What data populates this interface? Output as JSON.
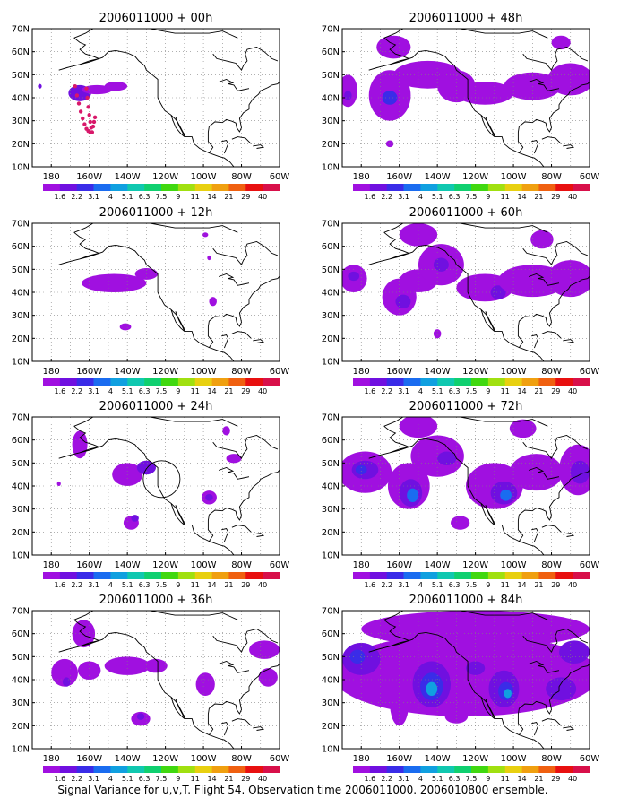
{
  "caption": "Signal Variance for u,v,T. Flight 54. Observation time 2006011000. 2006010800 ensemble.",
  "colors": {
    "coast": "#000000",
    "grid": "#808080",
    "frame": "#000000",
    "flight_track": "#d8186a",
    "circle": "#000000"
  },
  "colorbar": {
    "labels": [
      "1.6",
      "2.2",
      "3.1",
      "4",
      "5.1",
      "6.3",
      "7.5",
      "9",
      "11",
      "14",
      "21",
      "29",
      "40"
    ],
    "colors": [
      "#a010e0",
      "#7010e0",
      "#3a2ce8",
      "#1a6cf0",
      "#10a0e0",
      "#10c8b0",
      "#10d070",
      "#40d810",
      "#a0e010",
      "#e8d010",
      "#f0a010",
      "#f06010",
      "#e81010",
      "#d8104a"
    ]
  },
  "chart_data": [
    {
      "type": "heatmap",
      "title": "2006011000 + 00h",
      "lead_hours": 0,
      "x_ticks": [
        "180",
        "160W",
        "140W",
        "120W",
        "100W",
        "80W",
        "60W"
      ],
      "y_ticks": [
        "10N",
        "20N",
        "30N",
        "40N",
        "50N",
        "60N",
        "70N"
      ],
      "xlim": [
        -190,
        -60
      ],
      "ylim": [
        10,
        70
      ],
      "grid": "dotted",
      "colorbar": "bottom",
      "signal_regions": [
        {
          "lon": -165,
          "lat": 42,
          "rx": 6,
          "ry": 3.5,
          "level": 1
        },
        {
          "lon": -156,
          "lat": 43.5,
          "rx": 8,
          "ry": 2,
          "level": 0
        },
        {
          "lon": -146,
          "lat": 45,
          "rx": 6,
          "ry": 2,
          "level": 0
        },
        {
          "lon": -186,
          "lat": 45,
          "rx": 1,
          "ry": 1,
          "level": 1
        }
      ],
      "flight_track": {
        "lon": [
          -167.5,
          -166.5,
          -165.5,
          -164.5,
          -163.5,
          -162.5,
          -161.5,
          -160.5,
          -159.5,
          -161.5,
          -161,
          -160.5,
          -160,
          -159.5,
          -159,
          -158.5,
          -158,
          -157.5,
          -157
        ],
        "lat": [
          45,
          41,
          37.5,
          34,
          31,
          28.5,
          26.5,
          25.5,
          25,
          44,
          40,
          36,
          32.5,
          29.5,
          27,
          25,
          27.5,
          29.5,
          31.5
        ]
      }
    },
    {
      "type": "heatmap",
      "title": "2006011000 + 48h",
      "lead_hours": 48,
      "x_ticks": [
        "180",
        "160W",
        "140W",
        "120W",
        "100W",
        "80W",
        "60W"
      ],
      "y_ticks": [
        "10N",
        "20N",
        "30N",
        "40N",
        "50N",
        "60N",
        "70N"
      ],
      "xlim": [
        -190,
        -60
      ],
      "ylim": [
        10,
        70
      ],
      "grid": "dotted",
      "colorbar": "bottom",
      "signal_regions": [
        {
          "lon": -165,
          "lat": 41,
          "rx": 11,
          "ry": 11,
          "level": 0
        },
        {
          "lon": -165,
          "lat": 40,
          "rx": 4,
          "ry": 3,
          "level": 2
        },
        {
          "lon": -163,
          "lat": 62,
          "rx": 9,
          "ry": 5,
          "level": 0
        },
        {
          "lon": -187,
          "lat": 43,
          "rx": 5,
          "ry": 7,
          "level": 0
        },
        {
          "lon": -187,
          "lat": 41,
          "rx": 2,
          "ry": 2,
          "level": 1
        },
        {
          "lon": -145,
          "lat": 50,
          "rx": 18,
          "ry": 6,
          "level": 0
        },
        {
          "lon": -130,
          "lat": 45,
          "rx": 10,
          "ry": 7,
          "level": 0
        },
        {
          "lon": -115,
          "lat": 42,
          "rx": 15,
          "ry": 5,
          "level": 0
        },
        {
          "lon": -90,
          "lat": 45,
          "rx": 15,
          "ry": 6,
          "level": 0
        },
        {
          "lon": -70,
          "lat": 48,
          "rx": 12,
          "ry": 7,
          "level": 0
        },
        {
          "lon": -75,
          "lat": 64,
          "rx": 5,
          "ry": 3,
          "level": 0
        },
        {
          "lon": -165,
          "lat": 20,
          "rx": 2,
          "ry": 1.5,
          "level": 0
        }
      ]
    },
    {
      "type": "heatmap",
      "title": "2006011000 + 12h",
      "lead_hours": 12,
      "x_ticks": [
        "180",
        "160W",
        "140W",
        "120W",
        "100W",
        "80W",
        "60W"
      ],
      "y_ticks": [
        "10N",
        "20N",
        "30N",
        "40N",
        "50N",
        "60N",
        "70N"
      ],
      "xlim": [
        -190,
        -60
      ],
      "ylim": [
        10,
        70
      ],
      "grid": "dotted",
      "colorbar": "bottom",
      "signal_regions": [
        {
          "lon": -147,
          "lat": 44,
          "rx": 17,
          "ry": 4,
          "level": 0
        },
        {
          "lon": -130,
          "lat": 48,
          "rx": 6,
          "ry": 2.5,
          "level": 0
        },
        {
          "lon": -99,
          "lat": 65,
          "rx": 1.5,
          "ry": 1,
          "level": 0
        },
        {
          "lon": -97,
          "lat": 55,
          "rx": 1,
          "ry": 1,
          "level": 0
        },
        {
          "lon": -95,
          "lat": 36,
          "rx": 2,
          "ry": 2,
          "level": 0
        },
        {
          "lon": -141,
          "lat": 25,
          "rx": 3,
          "ry": 1.5,
          "level": 0
        }
      ]
    },
    {
      "type": "heatmap",
      "title": "2006011000 + 60h",
      "lead_hours": 60,
      "x_ticks": [
        "180",
        "160W",
        "140W",
        "120W",
        "100W",
        "80W",
        "60W"
      ],
      "y_ticks": [
        "10N",
        "20N",
        "30N",
        "40N",
        "50N",
        "60N",
        "70N"
      ],
      "xlim": [
        -190,
        -60
      ],
      "ylim": [
        10,
        70
      ],
      "grid": "dotted",
      "colorbar": "bottom",
      "signal_regions": [
        {
          "lon": -184,
          "lat": 46,
          "rx": 7,
          "ry": 6,
          "level": 0
        },
        {
          "lon": -184,
          "lat": 47,
          "rx": 3,
          "ry": 2,
          "level": 1
        },
        {
          "lon": -160,
          "lat": 38,
          "rx": 9,
          "ry": 8,
          "level": 0
        },
        {
          "lon": -158,
          "lat": 36,
          "rx": 4,
          "ry": 3,
          "level": 1
        },
        {
          "lon": -150,
          "lat": 45,
          "rx": 10,
          "ry": 5,
          "level": 0
        },
        {
          "lon": -138,
          "lat": 52,
          "rx": 12,
          "ry": 9,
          "level": 0
        },
        {
          "lon": -138,
          "lat": 52,
          "rx": 4,
          "ry": 3,
          "level": 1
        },
        {
          "lon": -150,
          "lat": 65,
          "rx": 10,
          "ry": 5,
          "level": 0
        },
        {
          "lon": -115,
          "lat": 42,
          "rx": 15,
          "ry": 6,
          "level": 0
        },
        {
          "lon": -108,
          "lat": 40,
          "rx": 4,
          "ry": 3,
          "level": 1
        },
        {
          "lon": -90,
          "lat": 45,
          "rx": 18,
          "ry": 7,
          "level": 0
        },
        {
          "lon": -70,
          "lat": 46,
          "rx": 12,
          "ry": 8,
          "level": 0
        },
        {
          "lon": -85,
          "lat": 63,
          "rx": 6,
          "ry": 4,
          "level": 0
        },
        {
          "lon": -140,
          "lat": 22,
          "rx": 2,
          "ry": 2,
          "level": 0
        }
      ]
    },
    {
      "type": "heatmap",
      "title": "2006011000 + 24h",
      "lead_hours": 24,
      "x_ticks": [
        "180",
        "160W",
        "140W",
        "120W",
        "100W",
        "80W",
        "60W"
      ],
      "y_ticks": [
        "10N",
        "20N",
        "30N",
        "40N",
        "50N",
        "60N",
        "70N"
      ],
      "xlim": [
        -190,
        -60
      ],
      "ylim": [
        10,
        70
      ],
      "grid": "dotted",
      "colorbar": "bottom",
      "signal_regions": [
        {
          "lon": -165,
          "lat": 58,
          "rx": 4,
          "ry": 6,
          "level": 0
        },
        {
          "lon": -140,
          "lat": 45,
          "rx": 8,
          "ry": 5,
          "level": 0
        },
        {
          "lon": -130,
          "lat": 48,
          "rx": 5,
          "ry": 3,
          "level": 1
        },
        {
          "lon": -138,
          "lat": 24,
          "rx": 4,
          "ry": 3,
          "level": 0
        },
        {
          "lon": -136,
          "lat": 26,
          "rx": 2,
          "ry": 1.5,
          "level": 1
        },
        {
          "lon": -97,
          "lat": 35,
          "rx": 4,
          "ry": 3,
          "level": 0
        },
        {
          "lon": -97,
          "lat": 35,
          "rx": 2,
          "ry": 1.5,
          "level": 1
        },
        {
          "lon": -84,
          "lat": 52,
          "rx": 4,
          "ry": 2,
          "level": 0
        },
        {
          "lon": -176,
          "lat": 41,
          "rx": 1,
          "ry": 1,
          "level": 0
        },
        {
          "lon": -88,
          "lat": 64,
          "rx": 2,
          "ry": 2,
          "level": 0
        }
      ],
      "circle": {
        "lon": -122,
        "lat": 43,
        "r": 8
      }
    },
    {
      "type": "heatmap",
      "title": "2006011000 + 72h",
      "lead_hours": 72,
      "x_ticks": [
        "180",
        "160W",
        "140W",
        "120W",
        "100W",
        "80W",
        "60W"
      ],
      "y_ticks": [
        "10N",
        "20N",
        "30N",
        "40N",
        "50N",
        "60N",
        "70N"
      ],
      "xlim": [
        -190,
        -60
      ],
      "ylim": [
        10,
        70
      ],
      "grid": "dotted",
      "colorbar": "bottom",
      "signal_regions": [
        {
          "lon": -178,
          "lat": 46,
          "rx": 14,
          "ry": 9,
          "level": 0
        },
        {
          "lon": -178,
          "lat": 47,
          "rx": 7,
          "ry": 4,
          "level": 1
        },
        {
          "lon": -180,
          "lat": 47,
          "rx": 3,
          "ry": 2,
          "level": 2
        },
        {
          "lon": -155,
          "lat": 40,
          "rx": 11,
          "ry": 10,
          "level": 0
        },
        {
          "lon": -154,
          "lat": 37,
          "rx": 6,
          "ry": 6,
          "level": 1
        },
        {
          "lon": -153,
          "lat": 36,
          "rx": 3,
          "ry": 3,
          "level": 3
        },
        {
          "lon": -140,
          "lat": 53,
          "rx": 14,
          "ry": 9,
          "level": 0
        },
        {
          "lon": -135,
          "lat": 52,
          "rx": 5,
          "ry": 3,
          "level": 1
        },
        {
          "lon": -150,
          "lat": 66,
          "rx": 10,
          "ry": 5,
          "level": 0
        },
        {
          "lon": -110,
          "lat": 40,
          "rx": 15,
          "ry": 10,
          "level": 0
        },
        {
          "lon": -105,
          "lat": 37,
          "rx": 7,
          "ry": 5,
          "level": 1
        },
        {
          "lon": -104,
          "lat": 36,
          "rx": 3,
          "ry": 2.5,
          "level": 3
        },
        {
          "lon": -88,
          "lat": 46,
          "rx": 14,
          "ry": 8,
          "level": 0
        },
        {
          "lon": -66,
          "lat": 47,
          "rx": 10,
          "ry": 11,
          "level": 0
        },
        {
          "lon": -65,
          "lat": 46,
          "rx": 5,
          "ry": 5,
          "level": 1
        },
        {
          "lon": -128,
          "lat": 24,
          "rx": 5,
          "ry": 3,
          "level": 0
        },
        {
          "lon": -95,
          "lat": 65,
          "rx": 7,
          "ry": 4,
          "level": 0
        }
      ]
    },
    {
      "type": "heatmap",
      "title": "2006011000 + 36h",
      "lead_hours": 36,
      "x_ticks": [
        "180",
        "160W",
        "140W",
        "120W",
        "100W",
        "80W",
        "60W"
      ],
      "y_ticks": [
        "10N",
        "20N",
        "30N",
        "40N",
        "50N",
        "60N",
        "70N"
      ],
      "xlim": [
        -190,
        -60
      ],
      "ylim": [
        10,
        70
      ],
      "grid": "dotted",
      "colorbar": "bottom",
      "signal_regions": [
        {
          "lon": -163,
          "lat": 60,
          "rx": 6,
          "ry": 6,
          "level": 0
        },
        {
          "lon": -173,
          "lat": 43,
          "rx": 7,
          "ry": 6,
          "level": 0
        },
        {
          "lon": -160,
          "lat": 44,
          "rx": 6,
          "ry": 4,
          "level": 0
        },
        {
          "lon": -140,
          "lat": 46,
          "rx": 12,
          "ry": 4,
          "level": 0
        },
        {
          "lon": -125,
          "lat": 46,
          "rx": 6,
          "ry": 3,
          "level": 0
        },
        {
          "lon": -133,
          "lat": 23,
          "rx": 5,
          "ry": 3,
          "level": 0
        },
        {
          "lon": -133,
          "lat": 24,
          "rx": 2,
          "ry": 1.5,
          "level": 1
        },
        {
          "lon": -99,
          "lat": 38,
          "rx": 5,
          "ry": 5,
          "level": 0
        },
        {
          "lon": -68,
          "lat": 53,
          "rx": 8,
          "ry": 4,
          "level": 0
        },
        {
          "lon": -66,
          "lat": 41,
          "rx": 5,
          "ry": 4,
          "level": 0
        },
        {
          "lon": -172,
          "lat": 39,
          "rx": 2,
          "ry": 2,
          "level": 1
        }
      ]
    },
    {
      "type": "heatmap",
      "title": "2006011000 + 84h",
      "lead_hours": 84,
      "x_ticks": [
        "180",
        "160W",
        "140W",
        "120W",
        "100W",
        "80W",
        "60W"
      ],
      "y_ticks": [
        "10N",
        "20N",
        "30N",
        "40N",
        "50N",
        "60N",
        "70N"
      ],
      "xlim": [
        -190,
        -60
      ],
      "ylim": [
        10,
        70
      ],
      "grid": "dotted",
      "colorbar": "bottom",
      "signal_regions": [
        {
          "lon": -125,
          "lat": 42,
          "rx": 70,
          "ry": 18,
          "level": 0
        },
        {
          "lon": -120,
          "lat": 62,
          "rx": 60,
          "ry": 8,
          "level": 0
        },
        {
          "lon": -180,
          "lat": 49,
          "rx": 10,
          "ry": 7,
          "level": 1
        },
        {
          "lon": -182,
          "lat": 50,
          "rx": 4,
          "ry": 3,
          "level": 2
        },
        {
          "lon": -160,
          "lat": 30,
          "rx": 5,
          "ry": 10,
          "level": 0
        },
        {
          "lon": -143,
          "lat": 38,
          "rx": 10,
          "ry": 10,
          "level": 1
        },
        {
          "lon": -143,
          "lat": 37,
          "rx": 6,
          "ry": 6,
          "level": 2
        },
        {
          "lon": -143,
          "lat": 36,
          "rx": 3,
          "ry": 3,
          "level": 4
        },
        {
          "lon": -105,
          "lat": 36,
          "rx": 8,
          "ry": 8,
          "level": 1
        },
        {
          "lon": -104,
          "lat": 35,
          "rx": 4,
          "ry": 4,
          "level": 2
        },
        {
          "lon": -103,
          "lat": 34,
          "rx": 2,
          "ry": 2,
          "level": 4
        },
        {
          "lon": -75,
          "lat": 36,
          "rx": 8,
          "ry": 5,
          "level": 1
        },
        {
          "lon": -68,
          "lat": 52,
          "rx": 8,
          "ry": 5,
          "level": 1
        },
        {
          "lon": -130,
          "lat": 24,
          "rx": 6,
          "ry": 3,
          "level": 0
        },
        {
          "lon": -120,
          "lat": 45,
          "rx": 5,
          "ry": 3,
          "level": 1
        }
      ]
    }
  ]
}
